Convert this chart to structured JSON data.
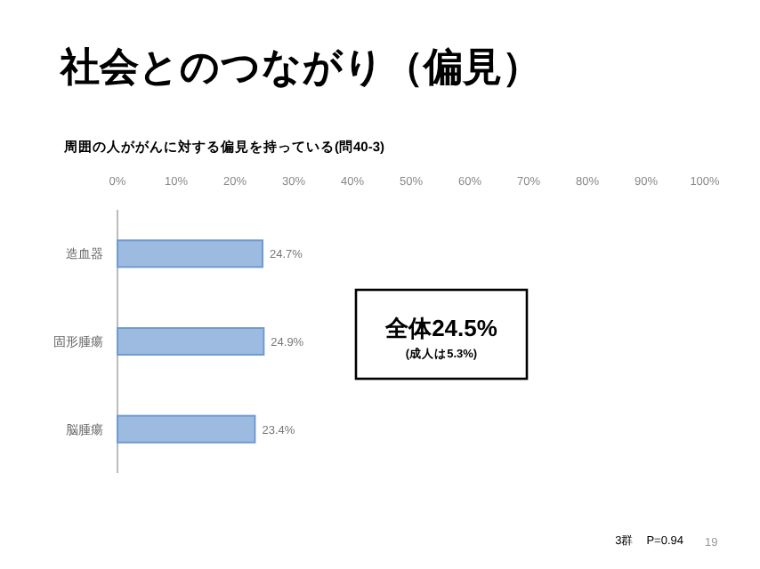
{
  "chart_data": {
    "type": "bar",
    "orientation": "horizontal",
    "title": "社会とのつながり（偏見）",
    "subtitle": "周囲の人ががんに対する偏見を持っている(問40-3)",
    "categories": [
      "造血器",
      "固形腫瘍",
      "脳腫瘍"
    ],
    "values": [
      24.7,
      24.9,
      23.4
    ],
    "value_labels": [
      "24.7%",
      "24.9%",
      "23.4%"
    ],
    "color": "#9dbbe0",
    "xlim": [
      0,
      100
    ],
    "xticks": [
      {
        "value": 0,
        "label": "0%"
      },
      {
        "value": 10,
        "label": "10%"
      },
      {
        "value": 20,
        "label": "20%"
      },
      {
        "value": 30,
        "label": "30%"
      },
      {
        "value": 40,
        "label": "40%"
      },
      {
        "value": 50,
        "label": "50%"
      },
      {
        "value": 60,
        "label": "60%"
      },
      {
        "value": 70,
        "label": "70%"
      },
      {
        "value": 80,
        "label": "80%"
      },
      {
        "value": 90,
        "label": "90%"
      },
      {
        "value": 100,
        "label": "100%"
      }
    ],
    "grid": false,
    "annotations": [
      "全体24.5%",
      "(成人は5.3%)",
      "3群　P=0.94",
      "19"
    ]
  }
}
